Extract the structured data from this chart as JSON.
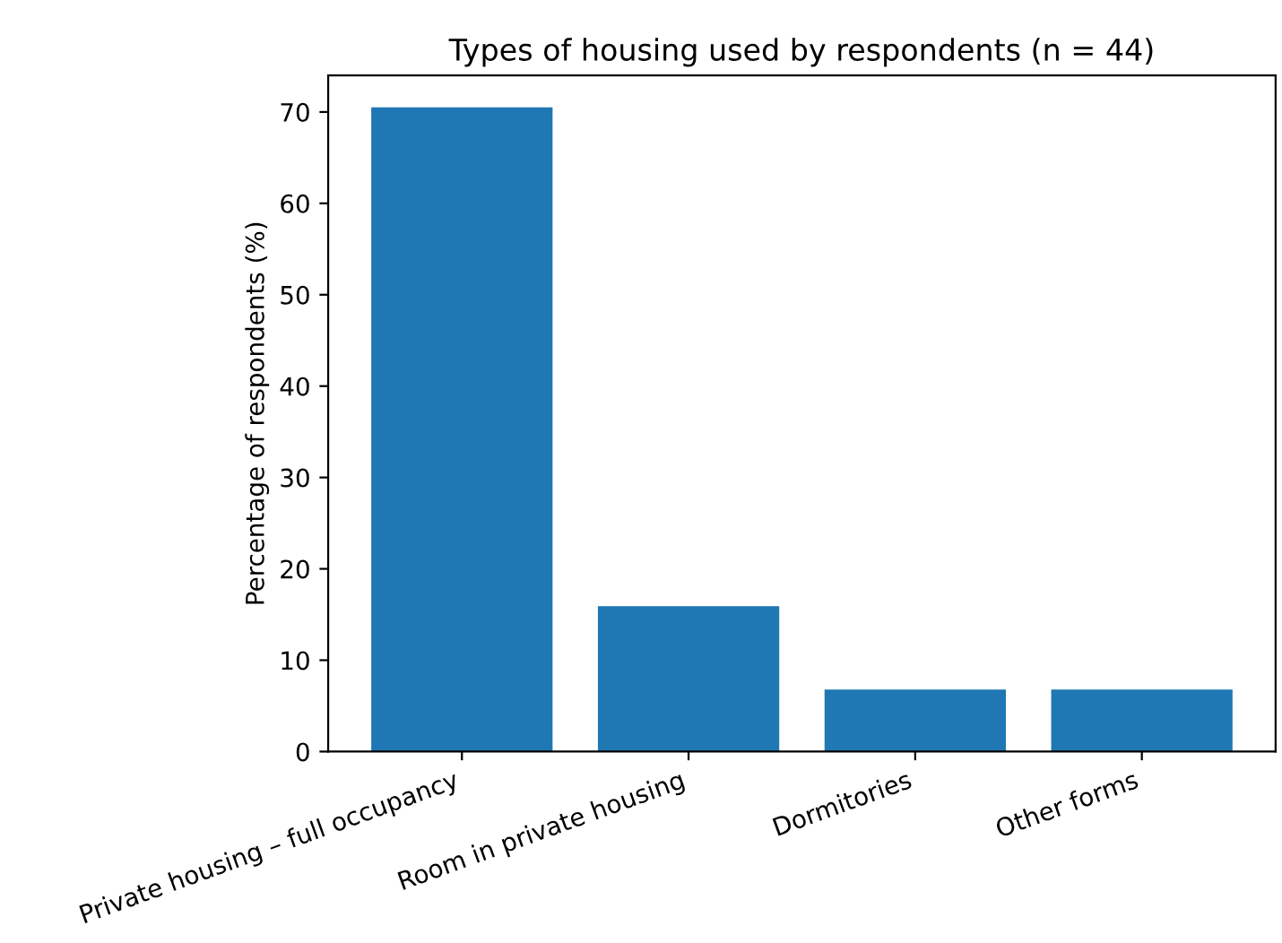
{
  "chart_data": {
    "type": "bar",
    "title": "Types of housing used by respondents (n = 44)",
    "ylabel": "Percentage of respondents (%)",
    "categories": [
      "Private housing – full occupancy",
      "Room in private housing",
      "Dormitories",
      "Other forms"
    ],
    "values": [
      70.5,
      15.9,
      6.8,
      6.8
    ],
    "color": "#1f77b4",
    "ylim": [
      0,
      74
    ],
    "yticks": [
      0,
      10,
      20,
      30,
      40,
      50,
      60,
      70
    ],
    "grid": false
  }
}
